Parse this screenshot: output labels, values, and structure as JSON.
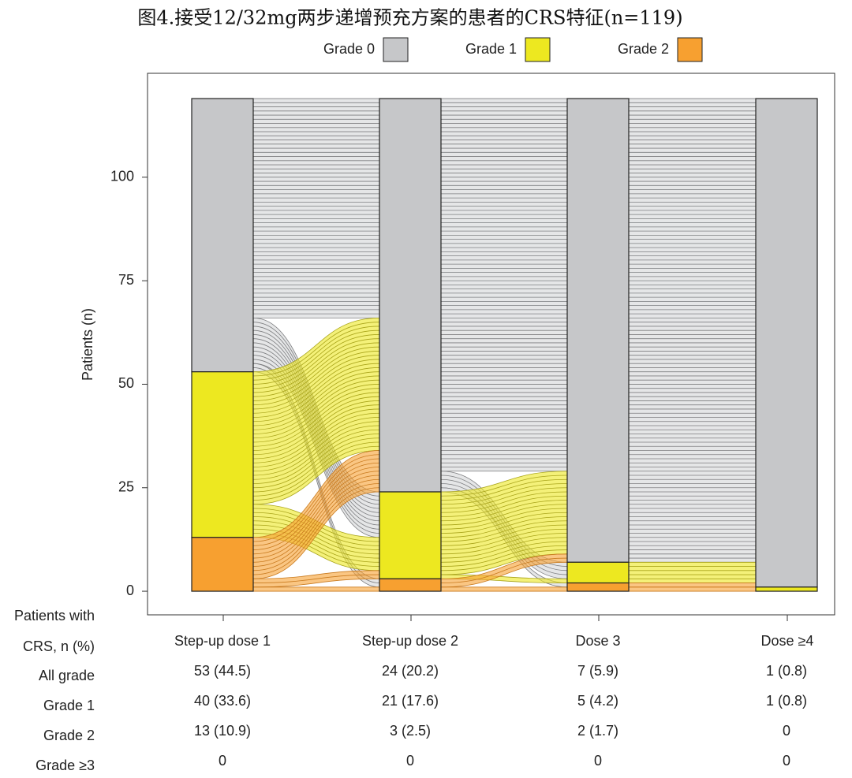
{
  "chart_data": {
    "type": "alluvial",
    "title": "图4.接受12/32mg两步递增预充方案的患者的CRS特征(n=119)",
    "y_label": "Patients (n)",
    "categories": [
      "Step-up dose 1",
      "Step-up dose 2",
      "Dose 3",
      "Dose ≥4"
    ],
    "series": [
      {
        "name": "Grade 0",
        "color": "#c6c7c9",
        "values": [
          66,
          95,
          112,
          118
        ]
      },
      {
        "name": "Grade 1",
        "color": "#ede820",
        "values": [
          40,
          21,
          5,
          1
        ]
      },
      {
        "name": "Grade 2",
        "color": "#f7a030",
        "values": [
          13,
          3,
          2,
          0
        ]
      }
    ],
    "flows": [
      [
        [
          53,
          11,
          2
        ],
        [
          32,
          8,
          0
        ],
        [
          10,
          2,
          1
        ]
      ],
      [
        [
          90,
          4,
          1
        ],
        [
          20,
          1,
          0
        ],
        [
          2,
          0,
          1
        ]
      ],
      [
        [
          112,
          0,
          0
        ],
        [
          5,
          0,
          0
        ],
        [
          1,
          1,
          0
        ]
      ]
    ],
    "ylim": [
      -5.7,
      125.1
    ],
    "yticks": [
      0,
      25,
      50,
      75,
      100
    ],
    "table": {
      "header": [
        "Patients with",
        "CRS, n (%)"
      ],
      "row_labels": [
        "All grade",
        "Grade 1",
        "Grade 2",
        "Grade ≥3"
      ],
      "rows": [
        [
          "53 (44.5)",
          "24 (20.2)",
          "7 (5.9)",
          "1 (0.8)"
        ],
        [
          "40 (33.6)",
          "21 (17.6)",
          "5 (4.2)",
          "1 (0.8)"
        ],
        [
          "13 (10.9)",
          "3 (2.5)",
          "2 (1.7)",
          "0"
        ],
        [
          "0",
          "0",
          "0",
          "0"
        ]
      ]
    }
  }
}
